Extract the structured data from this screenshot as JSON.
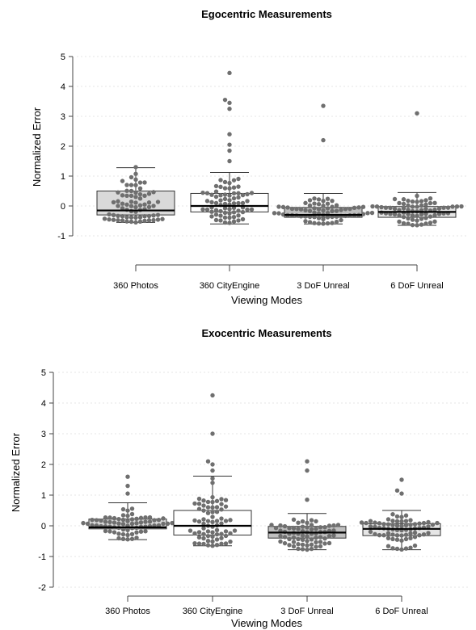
{
  "chart_data": [
    {
      "type": "box",
      "title": "Egocentric Measurements",
      "xlabel": "Viewing Modes",
      "ylabel": "Normalized Error",
      "categories": [
        "360 Photos",
        "360 CityEngine",
        "3 DoF Unreal",
        "6 DoF Unreal"
      ],
      "yticks": [
        -1,
        0,
        1,
        2,
        3,
        4,
        5
      ],
      "ylim": [
        -1.4,
        5.1
      ],
      "grid": true,
      "box_colors": [
        "#d9d9d9",
        "#ffffff",
        "#bfbfbf",
        "#e6e6e6"
      ],
      "boxes": [
        {
          "q1": -0.3,
          "median": -0.15,
          "q3": 0.5,
          "whisker_low": -0.55,
          "whisker_high": 1.28
        },
        {
          "q1": -0.2,
          "median": 0.0,
          "q3": 0.42,
          "whisker_low": -0.6,
          "whisker_high": 1.12
        },
        {
          "q1": -0.38,
          "median": -0.3,
          "q3": -0.05,
          "whisker_low": -0.6,
          "whisker_high": 0.42
        },
        {
          "q1": -0.38,
          "median": -0.2,
          "q3": -0.02,
          "whisker_low": -0.65,
          "whisker_high": 0.45
        }
      ],
      "outliers": [
        [
          1.3
        ],
        [
          4.45,
          3.55,
          3.45,
          3.25,
          2.4,
          2.05,
          1.85,
          1.5
        ],
        [
          3.35,
          2.2
        ],
        [
          3.1
        ]
      ]
    },
    {
      "type": "box",
      "title": "Exocentric Measurements",
      "xlabel": "Viewing Modes",
      "ylabel": "Normalized Error",
      "categories": [
        "360 Photos",
        "360 CityEngine",
        "3 DoF Unreal",
        "6 DoF Unreal"
      ],
      "yticks": [
        -2,
        -1,
        0,
        1,
        2,
        3,
        4,
        5
      ],
      "ylim": [
        -2.2,
        5.1
      ],
      "grid": true,
      "box_colors": [
        "#d9d9d9",
        "#ffffff",
        "#bfbfbf",
        "#e6e6e6"
      ],
      "boxes": [
        {
          "q1": -0.1,
          "median": -0.05,
          "q3": 0.22,
          "whisker_low": -0.45,
          "whisker_high": 0.75
        },
        {
          "q1": -0.3,
          "median": 0.0,
          "q3": 0.5,
          "whisker_low": -0.65,
          "whisker_high": 1.62
        },
        {
          "q1": -0.4,
          "median": -0.22,
          "q3": -0.02,
          "whisker_low": -0.78,
          "whisker_high": 0.4
        },
        {
          "q1": -0.32,
          "median": -0.1,
          "q3": 0.07,
          "whisker_low": -0.78,
          "whisker_high": 0.5
        }
      ],
      "outliers": [
        [
          1.6,
          1.3,
          1.05
        ],
        [
          4.25,
          3.0,
          2.1,
          2.0,
          1.8
        ],
        [
          2.1,
          1.8,
          0.85
        ],
        [
          1.5,
          1.15,
          1.05
        ]
      ]
    }
  ]
}
